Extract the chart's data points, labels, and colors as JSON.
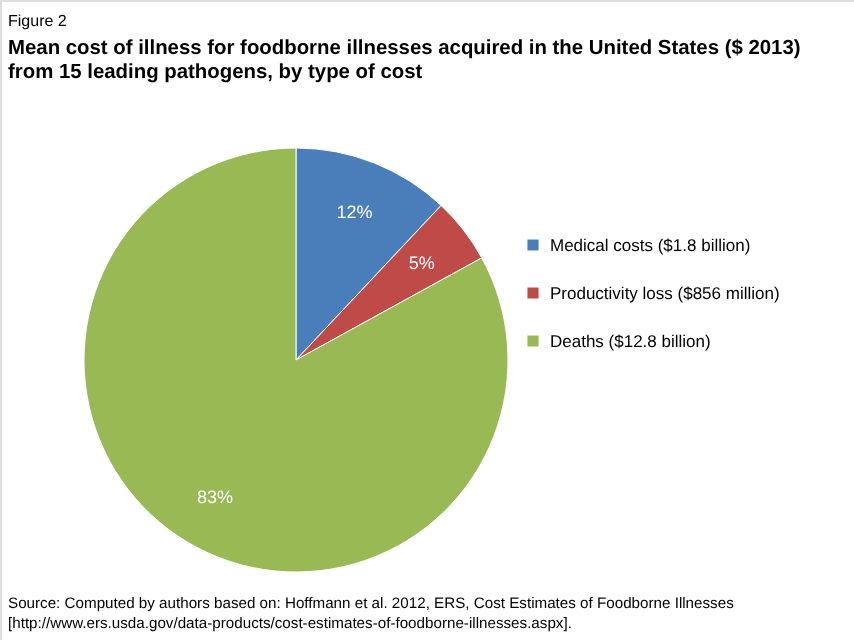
{
  "chart_data": {
    "type": "pie",
    "title": "Mean cost of illness for foodborne illnesses acquired in the United States ($ 2013) from 15 leading pathogens, by type of cost",
    "categories": [
      "Medical costs ($1.8 billion)",
      "Productivity loss ($856 million)",
      "Deaths ($12.8 billion)"
    ],
    "values": [
      12,
      5,
      83
    ],
    "colors": [
      "#4a7ebb",
      "#be4b48",
      "#98b954"
    ],
    "value_labels": [
      "12%",
      "5%",
      "83%"
    ],
    "legend": "right",
    "annotations": [
      "Figure 2",
      "Source: Computed by authors based on: Hoffmann et al. 2012, ERS, Cost Estimates of Foodborne Illnesses [http://www.ers.usda.gov/data-products/cost-estimates-of-foodborne-illnesses.aspx]."
    ]
  }
}
